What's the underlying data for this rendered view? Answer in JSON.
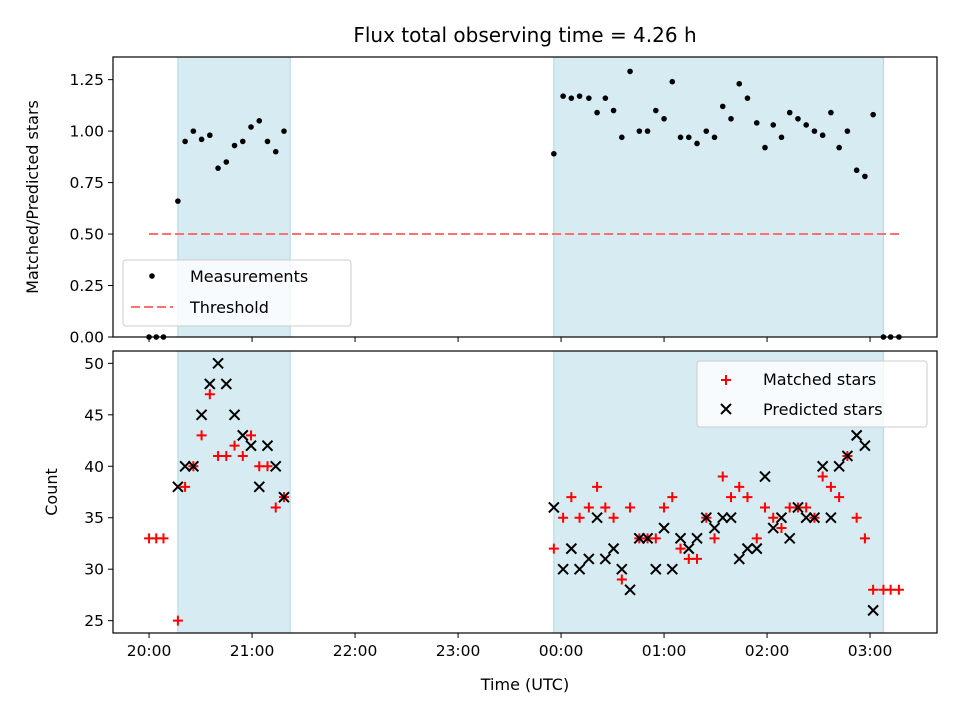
{
  "chart_data": {
    "title": "Flux total observing time = 4.26 h",
    "xlabel": "Time (UTC)",
    "x_unit": "hours relative to 00:00 UTC",
    "xlim": [
      -4.35,
      3.65
    ],
    "x_ticks": [
      -4,
      -3,
      -2,
      -1,
      0,
      1,
      2,
      3
    ],
    "x_tick_labels": [
      "20:00",
      "21:00",
      "22:00",
      "23:00",
      "00:00",
      "01:00",
      "02:00",
      "03:00"
    ],
    "shaded_intervals": [
      [
        -3.72,
        -2.63
      ],
      [
        -0.07,
        3.13
      ]
    ],
    "shade_color": "#add8e6",
    "panels": [
      {
        "type": "scatter",
        "ylabel": "Matched/Predicted stars",
        "ylim": [
          0,
          1.36
        ],
        "y_ticks": [
          0,
          0.25,
          0.5,
          0.75,
          1.0,
          1.25
        ],
        "y_tick_labels": [
          "0.00",
          "0.25",
          "0.50",
          "0.75",
          "1.00",
          "1.25"
        ],
        "legend_position": "lower-left",
        "threshold": {
          "name": "Threshold",
          "y": 0.5,
          "x_range": [
            -4.0,
            3.3
          ],
          "color": "#ff7070"
        },
        "series": [
          {
            "name": "Measurements",
            "marker": "dot",
            "color": "#000000",
            "x": [
              -4.0,
              -3.93,
              -3.86,
              -3.72,
              -3.65,
              -3.57,
              -3.49,
              -3.41,
              -3.33,
              -3.25,
              -3.17,
              -3.09,
              -3.01,
              -2.93,
              -2.85,
              -2.77,
              -2.69,
              -0.07,
              0.02,
              0.1,
              0.18,
              0.27,
              0.35,
              0.43,
              0.51,
              0.59,
              0.67,
              0.76,
              0.84,
              0.92,
              1.0,
              1.08,
              1.16,
              1.24,
              1.32,
              1.41,
              1.49,
              1.57,
              1.65,
              1.73,
              1.81,
              1.9,
              1.98,
              2.06,
              2.14,
              2.22,
              2.3,
              2.38,
              2.46,
              2.54,
              2.62,
              2.7,
              2.78,
              2.87,
              2.95,
              3.03,
              3.13,
              3.2,
              3.28
            ],
            "y": [
              0.0,
              0.0,
              0.0,
              0.66,
              0.95,
              1.0,
              0.96,
              0.98,
              0.82,
              0.85,
              0.93,
              0.95,
              1.02,
              1.05,
              0.95,
              0.9,
              1.0,
              0.89,
              1.17,
              1.16,
              1.17,
              1.16,
              1.09,
              1.16,
              1.1,
              0.97,
              1.29,
              1.0,
              1.0,
              1.1,
              1.06,
              1.24,
              0.97,
              0.97,
              0.94,
              1.0,
              0.97,
              1.12,
              1.06,
              1.23,
              1.16,
              1.04,
              0.92,
              1.03,
              0.97,
              1.09,
              1.06,
              1.03,
              1.0,
              0.98,
              1.09,
              0.92,
              1.0,
              0.81,
              0.78,
              1.08,
              0.0,
              0.0,
              0.0
            ]
          }
        ]
      },
      {
        "type": "scatter",
        "ylabel": "Count",
        "ylim": [
          23.8,
          51.2
        ],
        "y_ticks": [
          25,
          30,
          35,
          40,
          45,
          50
        ],
        "y_tick_labels": [
          "25",
          "30",
          "35",
          "40",
          "45",
          "50"
        ],
        "legend_position": "top-right",
        "series": [
          {
            "name": "Matched stars",
            "marker": "plus",
            "color": "#ff0000",
            "x": [
              -4.0,
              -3.93,
              -3.86,
              -3.72,
              -3.65,
              -3.57,
              -3.49,
              -3.41,
              -3.33,
              -3.25,
              -3.17,
              -3.09,
              -3.01,
              -2.93,
              -2.85,
              -2.77,
              -2.69,
              -0.07,
              0.02,
              0.1,
              0.18,
              0.27,
              0.35,
              0.43,
              0.51,
              0.59,
              0.67,
              0.76,
              0.84,
              0.92,
              1.0,
              1.08,
              1.16,
              1.24,
              1.32,
              1.41,
              1.49,
              1.57,
              1.65,
              1.73,
              1.81,
              1.9,
              1.98,
              2.06,
              2.14,
              2.22,
              2.3,
              2.38,
              2.46,
              2.54,
              2.62,
              2.7,
              2.78,
              2.87,
              2.95,
              3.03,
              3.13,
              3.2,
              3.28
            ],
            "y": [
              33,
              33,
              33,
              25,
              38,
              40,
              43,
              47,
              41,
              41,
              42,
              41,
              43,
              40,
              40,
              36,
              37,
              32,
              35,
              37,
              35,
              36,
              38,
              36,
              35,
              29,
              36,
              33,
              33,
              33,
              36,
              37,
              32,
              31,
              31,
              35,
              33,
              39,
              37,
              38,
              37,
              33,
              36,
              35,
              34,
              36,
              36,
              36,
              35,
              39,
              38,
              37,
              41,
              35,
              33,
              28,
              28,
              28,
              28
            ]
          },
          {
            "name": "Predicted stars",
            "marker": "x",
            "color": "#000000",
            "x": [
              -3.72,
              -3.65,
              -3.57,
              -3.49,
              -3.41,
              -3.33,
              -3.25,
              -3.17,
              -3.09,
              -3.01,
              -2.93,
              -2.85,
              -2.77,
              -2.69,
              -0.07,
              0.02,
              0.1,
              0.18,
              0.27,
              0.35,
              0.43,
              0.51,
              0.59,
              0.67,
              0.76,
              0.84,
              0.92,
              1.0,
              1.08,
              1.16,
              1.24,
              1.32,
              1.41,
              1.49,
              1.57,
              1.65,
              1.73,
              1.81,
              1.9,
              1.98,
              2.06,
              2.14,
              2.22,
              2.3,
              2.38,
              2.46,
              2.54,
              2.62,
              2.7,
              2.78,
              2.87,
              2.95,
              3.03
            ],
            "y": [
              38,
              40,
              40,
              45,
              48,
              50,
              48,
              45,
              43,
              42,
              38,
              42,
              40,
              37,
              36,
              30,
              32,
              30,
              31,
              35,
              31,
              32,
              30,
              28,
              33,
              33,
              30,
              34,
              30,
              33,
              32,
              33,
              35,
              34,
              35,
              35,
              31,
              32,
              32,
              39,
              34,
              35,
              33,
              36,
              35,
              35,
              40,
              35,
              40,
              41,
              43,
              42,
              26
            ]
          }
        ]
      }
    ]
  }
}
